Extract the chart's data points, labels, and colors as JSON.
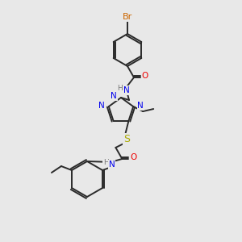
{
  "bg_color": "#e8e8e8",
  "bond_color": "#2a2a2a",
  "colors": {
    "N": "#0000ee",
    "O": "#ee0000",
    "S": "#aaaa00",
    "Br": "#cc6600",
    "H": "#777777",
    "C": "#2a2a2a"
  },
  "lw": 1.4,
  "fs": 7.5
}
